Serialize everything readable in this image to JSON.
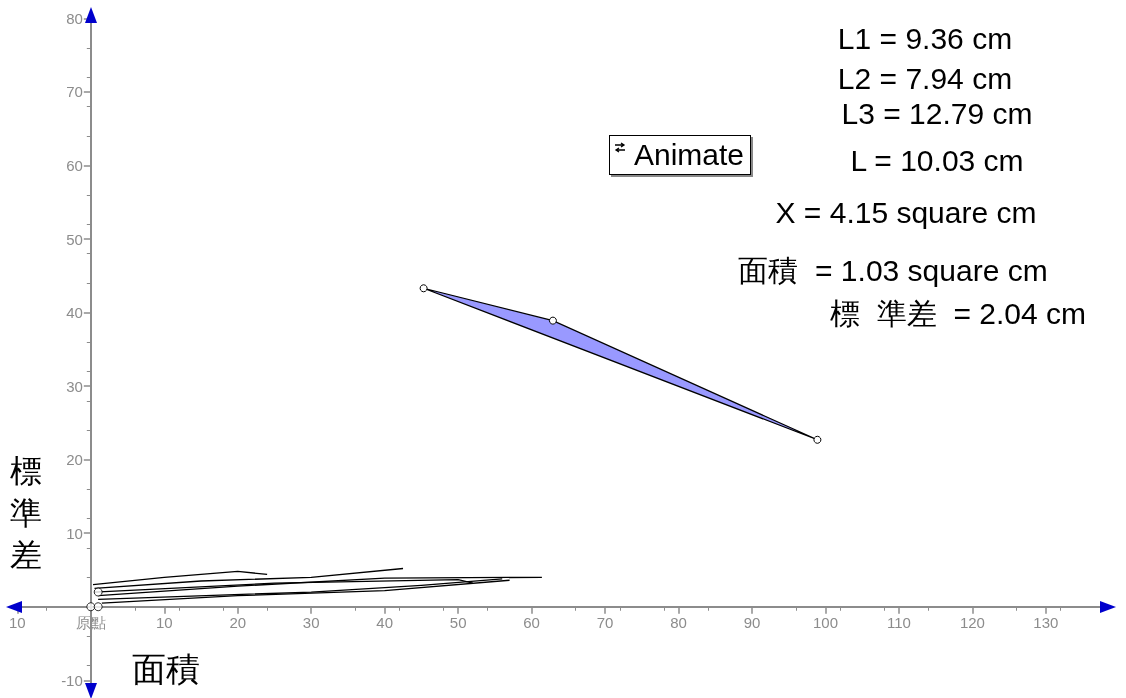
{
  "chart_data": {
    "type": "line",
    "xlabel": "面積",
    "ylabel": "標準差",
    "annotations": [
      "Animate",
      "L1 = 9.36 cm",
      "L2 = 7.94 cm",
      "L3 = 12.79 cm",
      "L = 10.03 cm",
      "X = 4.15 square cm",
      "面積  = 1.03 square cm",
      "標  準差  = 2.04 cm"
    ],
    "xlim": [
      -11,
      139
    ],
    "ylim": [
      -12,
      81
    ],
    "xticks": [
      {
        "value": -10,
        "label": "10"
      },
      {
        "value": 0,
        "label": "原點"
      },
      10,
      20,
      30,
      40,
      50,
      60,
      70,
      80,
      90,
      100,
      110,
      120,
      130
    ],
    "yticks": [
      -10,
      {
        "value": 0,
        "label": null
      },
      10,
      20,
      30,
      40,
      50,
      60,
      70,
      80
    ],
    "grid": false,
    "series": [
      {
        "type": "area",
        "color": "#9999ff",
        "marker": "circle",
        "x": [
          45.3,
          62.9,
          98.9
        ],
        "values": [
          43.3,
          38.9,
          22.7
        ]
      },
      {
        "type": "scatter",
        "color": "#000000",
        "marker": "circle",
        "x": [
          0,
          1,
          1
        ],
        "values": [
          0,
          0,
          2
        ]
      },
      {
        "color": "#000000",
        "x": [
          0.3,
          10,
          20,
          24
        ],
        "values": [
          3.0,
          4.0,
          4.8,
          4.4
        ]
      },
      {
        "color": "#000000",
        "x": [
          0.5,
          15,
          30,
          42.5
        ],
        "values": [
          2.5,
          3.5,
          4.0,
          5.2
        ]
      },
      {
        "color": "#000000",
        "x": [
          1,
          20,
          40,
          61.4
        ],
        "values": [
          1.5,
          2.8,
          3.9,
          4.0
        ]
      },
      {
        "color": "#000000",
        "x": [
          1,
          30,
          45,
          56
        ],
        "values": [
          1.0,
          2.0,
          2.9,
          3.8
        ]
      },
      {
        "color": "#000000",
        "x": [
          0.5,
          25,
          50,
          52
        ],
        "values": [
          2.0,
          3.2,
          3.7,
          3.2
        ]
      },
      {
        "color": "#000000",
        "x": [
          1.5,
          20,
          40,
          57
        ],
        "values": [
          0.5,
          1.5,
          2.2,
          3.6
        ]
      }
    ]
  }
}
